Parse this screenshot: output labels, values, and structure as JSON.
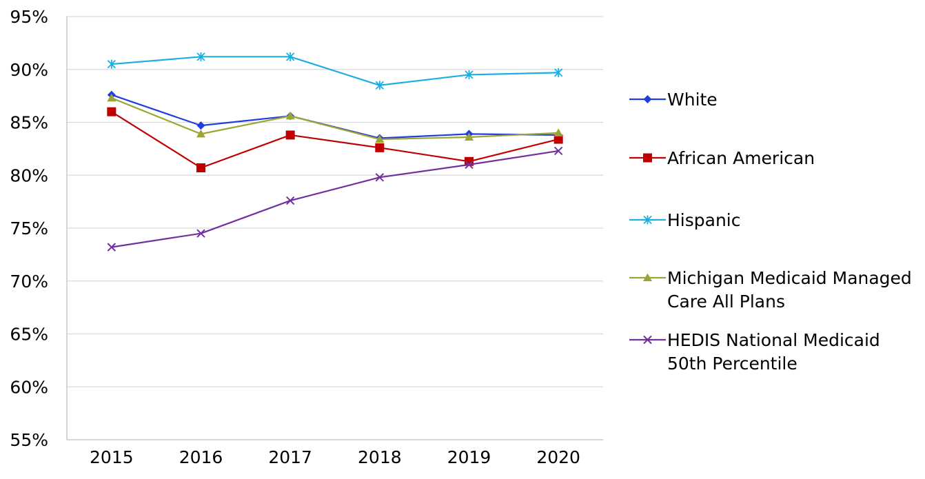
{
  "chart_data": {
    "type": "line",
    "title": "",
    "xlabel": "",
    "ylabel": "",
    "x": [
      "2015",
      "2016",
      "2017",
      "2018",
      "2019",
      "2020"
    ],
    "ylim": [
      55,
      95
    ],
    "y_ticks": [
      55,
      60,
      65,
      70,
      75,
      80,
      85,
      90,
      95
    ],
    "y_tick_labels": [
      "55%",
      "60%",
      "65%",
      "70%",
      "75%",
      "80%",
      "85%",
      "90%",
      "95%"
    ],
    "grid": true,
    "legend_position": "right",
    "series": [
      {
        "name": "White",
        "legend_lines": [
          "White"
        ],
        "color": "#1f3ee0",
        "marker": "diamond",
        "values": [
          87.6,
          84.7,
          85.6,
          83.5,
          83.9,
          83.8
        ]
      },
      {
        "name": "African American",
        "legend_lines": [
          "African American"
        ],
        "color": "#c00000",
        "marker": "square",
        "values": [
          86.0,
          80.7,
          83.8,
          82.6,
          81.3,
          83.4
        ]
      },
      {
        "name": "Hispanic",
        "legend_lines": [
          "Hispanic"
        ],
        "color": "#1aaee4",
        "marker": "asterisk",
        "values": [
          90.5,
          91.2,
          91.2,
          88.5,
          89.5,
          89.7
        ]
      },
      {
        "name": "Michigan Medicaid Managed Care All Plans",
        "legend_lines": [
          "Michigan Medicaid Managed",
          "Care All Plans"
        ],
        "color": "#9aa534",
        "marker": "triangle",
        "values": [
          87.3,
          83.9,
          85.6,
          83.4,
          83.6,
          84.0
        ]
      },
      {
        "name": "HEDIS National Medicaid 50th Percentile",
        "legend_lines": [
          "HEDIS National Medicaid",
          "50th Percentile"
        ],
        "color": "#7030a0",
        "marker": "x",
        "values": [
          73.2,
          74.5,
          77.6,
          79.8,
          81.0,
          82.3
        ]
      }
    ]
  }
}
